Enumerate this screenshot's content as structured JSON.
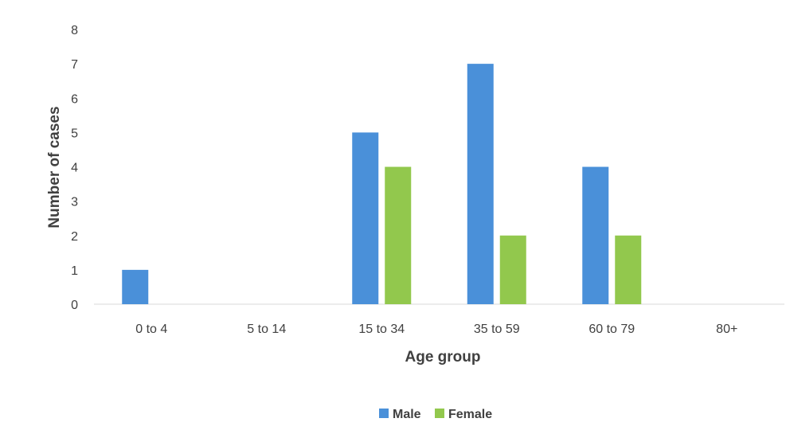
{
  "chart_data": {
    "type": "bar",
    "categories": [
      "0 to 4",
      "5 to 14",
      "15 to 34",
      "35 to 59",
      "60 to 79",
      "80+"
    ],
    "series": [
      {
        "name": "Male",
        "color": "#4a90d9",
        "values": [
          1,
          0,
          5,
          7,
          4,
          0
        ]
      },
      {
        "name": "Female",
        "color": "#92c84d",
        "values": [
          0,
          0,
          4,
          2,
          2,
          0
        ]
      }
    ],
    "title": "",
    "xlabel": "Age group",
    "ylabel": "Number of cases",
    "ylim": [
      0,
      8
    ],
    "yticks": [
      "0",
      "1",
      "2",
      "3",
      "4",
      "5",
      "6",
      "7",
      "8"
    ],
    "grid": false,
    "legend": "bottom"
  }
}
